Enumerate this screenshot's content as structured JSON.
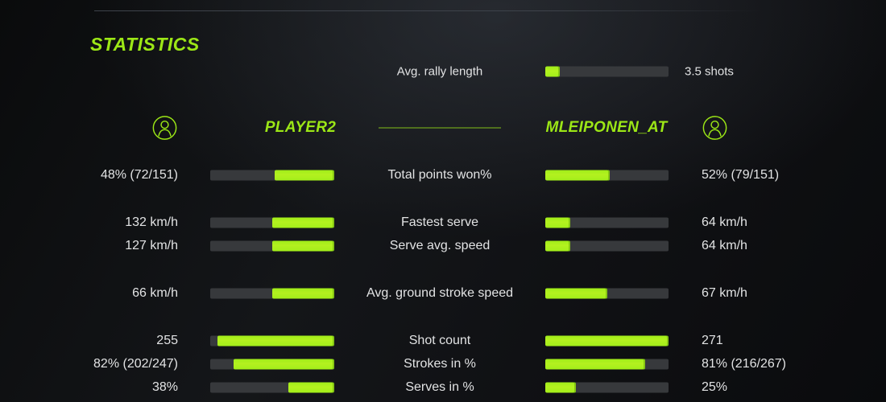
{
  "colors": {
    "accent": "#9ce716",
    "bar_fill": "#a9ef1c",
    "bar_track": "#37393c",
    "text": "#e2e3e4"
  },
  "header": {
    "title": "STATISTICS"
  },
  "summary": {
    "label": "Avg. rally length",
    "value": "3.5 shots",
    "fill_pct": 12
  },
  "players": {
    "left": {
      "name": "PLAYER2",
      "icon": "user-icon"
    },
    "right": {
      "name": "MLEIPONEN_AT",
      "icon": "user-icon"
    }
  },
  "rows": [
    {
      "label": "Total points won%",
      "left_value": "48% (72/151)",
      "right_value": "52% (79/151)",
      "left_fill": 48,
      "right_fill": 52
    },
    {
      "label": "Fastest serve",
      "left_value": "132 km/h",
      "right_value": "64 km/h",
      "left_fill": 50,
      "right_fill": 20
    },
    {
      "label": "Serve avg. speed",
      "left_value": "127 km/h",
      "right_value": "64 km/h",
      "left_fill": 50,
      "right_fill": 20
    },
    {
      "label": "Avg. ground stroke speed",
      "left_value": "66 km/h",
      "right_value": "67 km/h",
      "left_fill": 50,
      "right_fill": 50
    },
    {
      "label": "Shot count",
      "left_value": "255",
      "right_value": "271",
      "left_fill": 94,
      "right_fill": 100
    },
    {
      "label": "Strokes in %",
      "left_value": "82% (202/247)",
      "right_value": "81% (216/267)",
      "left_fill": 81,
      "right_fill": 81
    },
    {
      "label": "Serves in %",
      "left_value": "38%",
      "right_value": "25%",
      "left_fill": 37,
      "right_fill": 25
    }
  ]
}
